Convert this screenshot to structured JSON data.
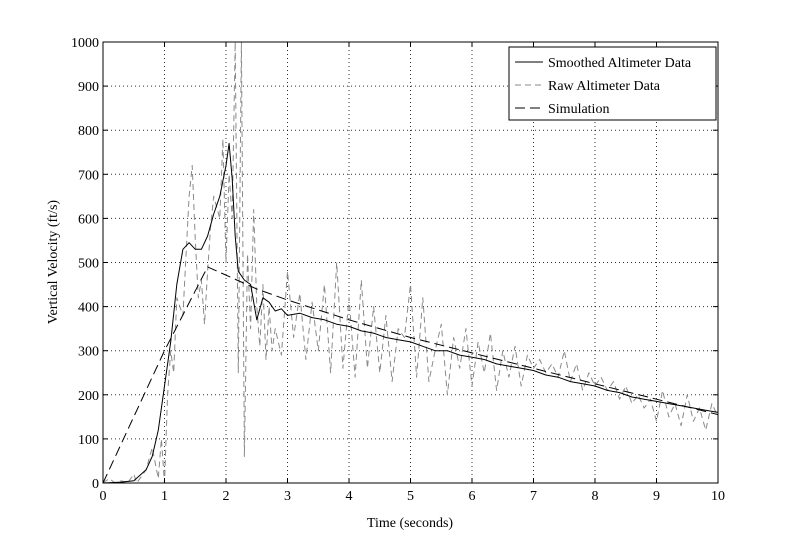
{
  "chart_data": {
    "type": "line",
    "title": "",
    "xlabel": "Time (seconds)",
    "ylabel": "Vertical Velocity (ft/s)",
    "xlim": [
      0,
      10
    ],
    "ylim": [
      0,
      1000
    ],
    "xticks": [
      0,
      1,
      2,
      3,
      4,
      5,
      6,
      7,
      8,
      9,
      10
    ],
    "yticks": [
      0,
      100,
      200,
      300,
      400,
      500,
      600,
      700,
      800,
      900,
      1000
    ],
    "grid": true,
    "legend_position": "top-right",
    "series": [
      {
        "name": "Smoothed Altimeter Data",
        "style": "solid",
        "color": "#000000",
        "x": [
          0.0,
          0.3,
          0.5,
          0.7,
          0.8,
          0.9,
          1.0,
          1.1,
          1.2,
          1.3,
          1.4,
          1.5,
          1.6,
          1.7,
          1.8,
          1.9,
          2.0,
          2.05,
          2.1,
          2.15,
          2.2,
          2.3,
          2.4,
          2.5,
          2.6,
          2.7,
          2.8,
          2.9,
          3.0,
          3.2,
          3.4,
          3.6,
          3.8,
          4.0,
          4.2,
          4.4,
          4.6,
          4.8,
          5.0,
          5.2,
          5.4,
          5.6,
          5.8,
          6.0,
          6.2,
          6.4,
          6.6,
          6.8,
          7.0,
          7.2,
          7.4,
          7.6,
          7.8,
          8.0,
          8.2,
          8.4,
          8.6,
          8.8,
          9.0,
          9.2,
          9.4,
          9.6,
          9.8,
          10.0
        ],
        "y": [
          0,
          2,
          5,
          30,
          60,
          120,
          220,
          320,
          450,
          530,
          545,
          530,
          530,
          560,
          610,
          650,
          720,
          770,
          690,
          560,
          480,
          460,
          450,
          370,
          420,
          410,
          390,
          395,
          380,
          385,
          375,
          370,
          360,
          355,
          345,
          340,
          330,
          325,
          320,
          310,
          300,
          300,
          290,
          285,
          280,
          270,
          265,
          260,
          255,
          245,
          240,
          230,
          225,
          220,
          210,
          205,
          195,
          190,
          185,
          180,
          175,
          170,
          165,
          160
        ]
      },
      {
        "name": "Raw Altimeter Data",
        "style": "dashed",
        "color": "#8a8a8a",
        "x": [
          0.0,
          0.1,
          0.2,
          0.3,
          0.4,
          0.5,
          0.55,
          0.6,
          0.7,
          0.8,
          0.9,
          0.95,
          1.0,
          1.05,
          1.1,
          1.15,
          1.2,
          1.3,
          1.4,
          1.45,
          1.5,
          1.55,
          1.6,
          1.65,
          1.7,
          1.75,
          1.8,
          1.9,
          1.95,
          2.0,
          2.05,
          2.1,
          2.15,
          2.2,
          2.25,
          2.3,
          2.35,
          2.4,
          2.45,
          2.5,
          2.55,
          2.6,
          2.65,
          2.7,
          2.75,
          2.8,
          2.9,
          3.0,
          3.1,
          3.2,
          3.3,
          3.4,
          3.5,
          3.6,
          3.7,
          3.8,
          3.9,
          4.0,
          4.1,
          4.2,
          4.3,
          4.4,
          4.5,
          4.6,
          4.7,
          4.8,
          4.9,
          5.0,
          5.1,
          5.2,
          5.3,
          5.4,
          5.5,
          5.6,
          5.7,
          5.8,
          5.9,
          6.0,
          6.1,
          6.2,
          6.3,
          6.4,
          6.5,
          6.6,
          6.7,
          6.8,
          6.9,
          7.0,
          7.1,
          7.2,
          7.3,
          7.4,
          7.5,
          7.6,
          7.7,
          7.8,
          7.9,
          8.0,
          8.1,
          8.2,
          8.3,
          8.4,
          8.5,
          8.6,
          8.7,
          8.8,
          8.9,
          9.0,
          9.1,
          9.2,
          9.3,
          9.4,
          9.5,
          9.6,
          9.7,
          9.8,
          9.9,
          10.0
        ],
        "y": [
          0,
          10,
          0,
          5,
          0,
          20,
          0,
          10,
          30,
          80,
          10,
          100,
          0,
          200,
          300,
          250,
          420,
          380,
          650,
          720,
          550,
          420,
          460,
          360,
          480,
          580,
          650,
          600,
          780,
          500,
          700,
          600,
          1000,
          250,
          1000,
          60,
          520,
          350,
          620,
          400,
          310,
          450,
          280,
          400,
          300,
          350,
          290,
          480,
          330,
          430,
          280,
          410,
          300,
          450,
          250,
          500,
          260,
          420,
          240,
          460,
          260,
          400,
          250,
          380,
          230,
          350,
          330,
          450,
          240,
          420,
          230,
          300,
          360,
          200,
          330,
          260,
          350,
          220,
          320,
          250,
          340,
          210,
          300,
          240,
          310,
          220,
          290,
          260,
          280,
          250,
          270,
          240,
          300,
          230,
          270,
          210,
          250,
          220,
          240,
          210,
          230,
          190,
          220,
          180,
          200,
          170,
          190,
          140,
          210,
          150,
          180,
          130,
          200,
          140,
          170,
          120,
          180,
          150
        ]
      },
      {
        "name": "Simulation",
        "style": "long-dashed",
        "color": "#000000",
        "x": [
          0.0,
          1.0,
          1.7,
          2.5,
          3.0,
          4.0,
          5.0,
          6.0,
          7.0,
          8.0,
          9.0,
          10.0
        ],
        "y": [
          0,
          300,
          490,
          440,
          415,
          370,
          330,
          295,
          260,
          225,
          190,
          155
        ]
      }
    ]
  },
  "legend": {
    "items": [
      "Smoothed Altimeter Data",
      "Raw Altimeter Data",
      "Simulation"
    ]
  }
}
